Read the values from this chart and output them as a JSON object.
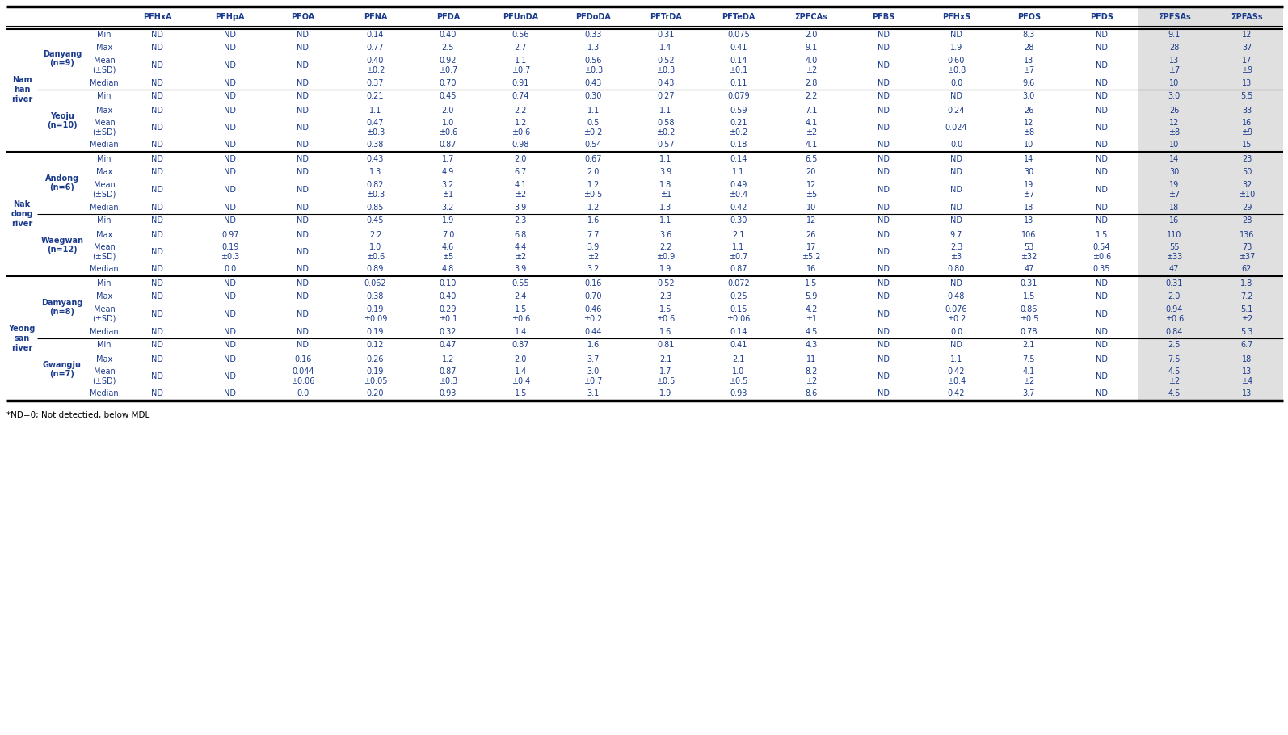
{
  "footnote": "*ND=0; Not detectied, below MDL",
  "header_cols": [
    "PFHxA",
    "PFHpA",
    "PFOA",
    "PFNA",
    "PFDA",
    "PFUnDA",
    "PFDoDA",
    "PFTrDA",
    "PFTeDA",
    "ΣPFCAs",
    "PFBS",
    "PFHxS",
    "PFOS",
    "PFDS",
    "ΣPFSAs",
    "ΣPFASs"
  ],
  "rivers": [
    "Nam\nhan\nriver",
    "Nak\ndong\nriver",
    "Yeong\nsan\nriver"
  ],
  "stations": [
    "Danyang\n(n=9)",
    "Yeoju\n(n=10)",
    "Andong\n(n=6)",
    "Waegwan\n(n=12)",
    "Damyang\n(n=8)",
    "Gwangju\n(n=7)"
  ],
  "stat_labels": [
    "Min",
    "Max",
    "Mean\n(±SD)",
    "Median"
  ],
  "data": [
    [
      "ND",
      "ND",
      "ND",
      "0.14",
      "0.40",
      "0.56",
      "0.33",
      "0.31",
      "0.075",
      "2.0",
      "ND",
      "ND",
      "8.3",
      "ND",
      "9.1",
      "12"
    ],
    [
      "ND",
      "ND",
      "ND",
      "0.77",
      "2.5",
      "2.7",
      "1.3",
      "1.4",
      "0.41",
      "9.1",
      "ND",
      "1.9",
      "28",
      "ND",
      "28",
      "37"
    ],
    [
      "ND",
      "ND",
      "ND",
      "0.40\n±0.2",
      "0.92\n±0.7",
      "1.1\n±0.7",
      "0.56\n±0.3",
      "0.52\n±0.3",
      "0.14\n±0.1",
      "4.0\n±2",
      "ND",
      "0.60\n±0.8",
      "13\n±7",
      "ND",
      "13\n±7",
      "17\n±9"
    ],
    [
      "ND",
      "ND",
      "ND",
      "0.37",
      "0.70",
      "0.91",
      "0.43",
      "0.43",
      "0.11",
      "2.8",
      "ND",
      "0.0",
      "9.6",
      "ND",
      "10",
      "13"
    ],
    [
      "ND",
      "ND",
      "ND",
      "0.21",
      "0.45",
      "0.74",
      "0.30",
      "0.27",
      "0.079",
      "2.2",
      "ND",
      "ND",
      "3.0",
      "ND",
      "3.0",
      "5.5"
    ],
    [
      "ND",
      "ND",
      "ND",
      "1.1",
      "2.0",
      "2.2",
      "1.1",
      "1.1",
      "0.59",
      "7.1",
      "ND",
      "0.24",
      "26",
      "ND",
      "26",
      "33"
    ],
    [
      "ND",
      "ND",
      "ND",
      "0.47\n±0.3",
      "1.0\n±0.6",
      "1.2\n±0.6",
      "0.5\n±0.2",
      "0.58\n±0.2",
      "0.21\n±0.2",
      "4.1\n±2",
      "ND",
      "0.024",
      "12\n±8",
      "ND",
      "12\n±8",
      "16\n±9"
    ],
    [
      "ND",
      "ND",
      "ND",
      "0.38",
      "0.87",
      "0.98",
      "0.54",
      "0.57",
      "0.18",
      "4.1",
      "ND",
      "0.0",
      "10",
      "ND",
      "10",
      "15"
    ],
    [
      "ND",
      "ND",
      "ND",
      "0.43",
      "1.7",
      "2.0",
      "0.67",
      "1.1",
      "0.14",
      "6.5",
      "ND",
      "ND",
      "14",
      "ND",
      "14",
      "23"
    ],
    [
      "ND",
      "ND",
      "ND",
      "1.3",
      "4.9",
      "6.7",
      "2.0",
      "3.9",
      "1.1",
      "20",
      "ND",
      "ND",
      "30",
      "ND",
      "30",
      "50"
    ],
    [
      "ND",
      "ND",
      "ND",
      "0.82\n±0.3",
      "3.2\n±1",
      "4.1\n±2",
      "1.2\n±0.5",
      "1.8\n±1",
      "0.49\n±0.4",
      "12\n±5",
      "ND",
      "ND",
      "19\n±7",
      "ND",
      "19\n±7",
      "32\n±10"
    ],
    [
      "ND",
      "ND",
      "ND",
      "0.85",
      "3.2",
      "3.9",
      "1.2",
      "1.3",
      "0.42",
      "10",
      "ND",
      "ND",
      "18",
      "ND",
      "18",
      "29"
    ],
    [
      "ND",
      "ND",
      "ND",
      "0.45",
      "1.9",
      "2.3",
      "1.6",
      "1.1",
      "0.30",
      "12",
      "ND",
      "ND",
      "13",
      "ND",
      "16",
      "28"
    ],
    [
      "ND",
      "0.97",
      "ND",
      "2.2",
      "7.0",
      "6.8",
      "7.7",
      "3.6",
      "2.1",
      "26",
      "ND",
      "9.7",
      "106",
      "1.5",
      "110",
      "136"
    ],
    [
      "ND",
      "0.19\n±0.3",
      "ND",
      "1.0\n±0.6",
      "4.6\n±5",
      "4.4\n±2",
      "3.9\n±2",
      "2.2\n±0.9",
      "1.1\n±0.7",
      "17\n±5.2",
      "ND",
      "2.3\n±3",
      "53\n±32",
      "0.54\n±0.6",
      "55\n±33",
      "73\n±37"
    ],
    [
      "ND",
      "0.0",
      "ND",
      "0.89",
      "4.8",
      "3.9",
      "3.2",
      "1.9",
      "0.87",
      "16",
      "ND",
      "0.80",
      "47",
      "0.35",
      "47",
      "62"
    ],
    [
      "ND",
      "ND",
      "ND",
      "0.062",
      "0.10",
      "0.55",
      "0.16",
      "0.52",
      "0.072",
      "1.5",
      "ND",
      "ND",
      "0.31",
      "ND",
      "0.31",
      "1.8"
    ],
    [
      "ND",
      "ND",
      "ND",
      "0.38",
      "0.40",
      "2.4",
      "0.70",
      "2.3",
      "0.25",
      "5.9",
      "ND",
      "0.48",
      "1.5",
      "ND",
      "2.0",
      "7.2"
    ],
    [
      "ND",
      "ND",
      "ND",
      "0.19\n±0.09",
      "0.29\n±0.1",
      "1.5\n±0.6",
      "0.46\n±0.2",
      "1.5\n±0.6",
      "0.15\n±0.06",
      "4.2\n±1",
      "ND",
      "0.076\n±0.2",
      "0.86\n±0.5",
      "ND",
      "0.94\n±0.6",
      "5.1\n±2"
    ],
    [
      "ND",
      "ND",
      "ND",
      "0.19",
      "0.32",
      "1.4",
      "0.44",
      "1.6",
      "0.14",
      "4.5",
      "ND",
      "0.0",
      "0.78",
      "ND",
      "0.84",
      "5.3"
    ],
    [
      "ND",
      "ND",
      "ND",
      "0.12",
      "0.47",
      "0.87",
      "1.6",
      "0.81",
      "0.41",
      "4.3",
      "ND",
      "ND",
      "2.1",
      "ND",
      "2.5",
      "6.7"
    ],
    [
      "ND",
      "ND",
      "0.16",
      "0.26",
      "1.2",
      "2.0",
      "3.7",
      "2.1",
      "2.1",
      "11",
      "ND",
      "1.1",
      "7.5",
      "ND",
      "7.5",
      "18"
    ],
    [
      "ND",
      "ND",
      "0.044\n±0.06",
      "0.19\n±0.05",
      "0.87\n±0.3",
      "1.4\n±0.4",
      "3.0\n±0.7",
      "1.7\n±0.5",
      "1.0\n±0.5",
      "8.2\n±2",
      "ND",
      "0.42\n±0.4",
      "4.1\n±2",
      "ND",
      "4.5\n±2",
      "13\n±4"
    ],
    [
      "ND",
      "ND",
      "0.0",
      "0.20",
      "0.93",
      "1.5",
      "3.1",
      "1.9",
      "0.93",
      "8.6",
      "ND",
      "0.42",
      "3.7",
      "ND",
      "4.5",
      "13"
    ]
  ],
  "text_color": "#1a3a8c",
  "bg_color": "#ffffff",
  "shaded_color": "#e0e0e0"
}
